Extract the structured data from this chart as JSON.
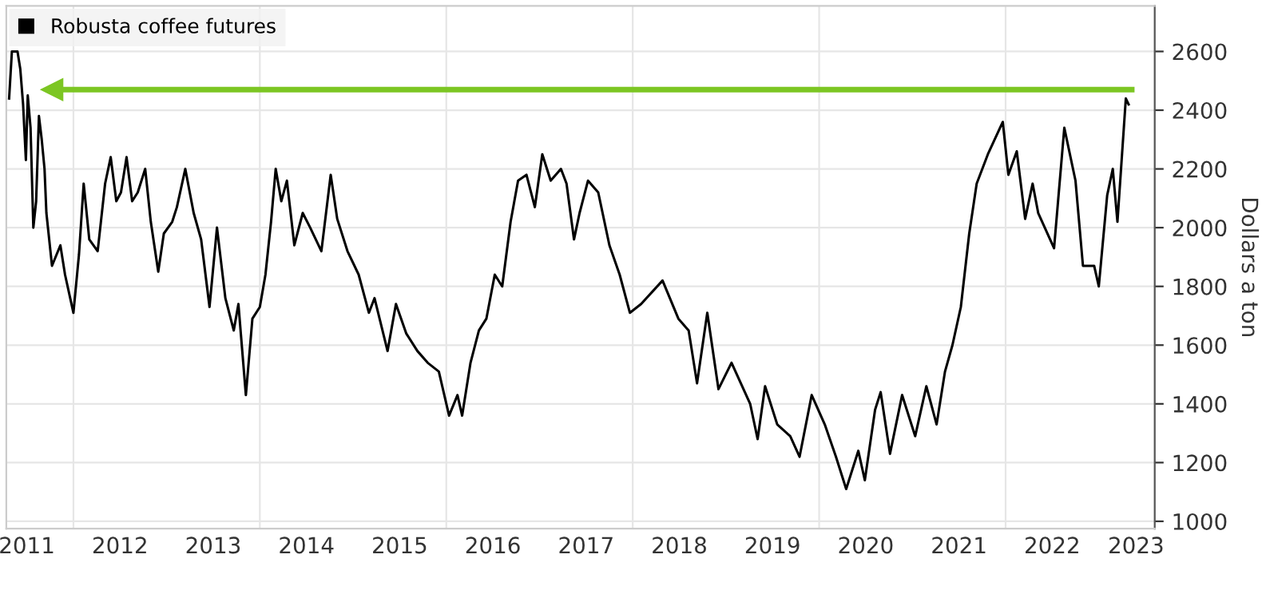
{
  "chart_data": {
    "type": "line",
    "ylabel": "Dollars a ton",
    "legend": "top left",
    "grid": true,
    "marker": "none",
    "line_style": "solid",
    "xlim": [
      2011.28,
      2023.6
    ],
    "ylim": [
      975,
      2755
    ],
    "yticks": [
      1000,
      1200,
      1400,
      1600,
      1800,
      2000,
      2200,
      2400,
      2600
    ],
    "xticks": [
      {
        "value": 2011.5,
        "label": "2011"
      },
      {
        "value": 2012.5,
        "label": "2012"
      },
      {
        "value": 2013.5,
        "label": "2013"
      },
      {
        "value": 2014.5,
        "label": "2014"
      },
      {
        "value": 2015.5,
        "label": "2015"
      },
      {
        "value": 2016.5,
        "label": "2016"
      },
      {
        "value": 2017.5,
        "label": "2017"
      },
      {
        "value": 2018.5,
        "label": "2018"
      },
      {
        "value": 2019.5,
        "label": "2019"
      },
      {
        "value": 2020.5,
        "label": "2020"
      },
      {
        "value": 2021.5,
        "label": "2021"
      },
      {
        "value": 2022.5,
        "label": "2022"
      },
      {
        "value": 2023.4,
        "label": "2023"
      },
      {
        "value": 2012,
        "label": null
      },
      {
        "value": 2014,
        "label": null
      },
      {
        "value": 2016,
        "label": null
      },
      {
        "value": 2018,
        "label": null
      },
      {
        "value": 2020,
        "label": null
      },
      {
        "value": 2022,
        "label": null
      }
    ],
    "ref_lines": [
      {
        "axis": "y",
        "value": 2470,
        "color": "#7cc623"
      }
    ],
    "series": [
      {
        "name": "Robusta coffee futures",
        "color": "#000000",
        "x": [
          2011.31,
          2011.34,
          2011.4,
          2011.43,
          2011.46,
          2011.49,
          2011.51,
          2011.54,
          2011.57,
          2011.6,
          2011.63,
          2011.66,
          2011.69,
          2011.71,
          2011.77,
          2011.86,
          2011.91,
          2012.0,
          2012.06,
          2012.11,
          2012.17,
          2012.26,
          2012.34,
          2012.4,
          2012.46,
          2012.51,
          2012.57,
          2012.63,
          2012.69,
          2012.77,
          2012.83,
          2012.91,
          2012.97,
          2013.06,
          2013.11,
          2013.2,
          2013.29,
          2013.37,
          2013.46,
          2013.54,
          2013.63,
          2013.72,
          2013.77,
          2013.85,
          2013.92,
          2014.0,
          2014.06,
          2014.12,
          2014.17,
          2014.23,
          2014.29,
          2014.37,
          2014.46,
          2014.54,
          2014.66,
          2014.76,
          2014.83,
          2014.94,
          2015.06,
          2015.17,
          2015.23,
          2015.37,
          2015.46,
          2015.57,
          2015.69,
          2015.8,
          2015.92,
          2016.03,
          2016.12,
          2016.17,
          2016.26,
          2016.35,
          2016.43,
          2016.52,
          2016.6,
          2016.69,
          2016.77,
          2016.86,
          2016.95,
          2017.03,
          2017.12,
          2017.23,
          2017.29,
          2017.37,
          2017.43,
          2017.52,
          2017.63,
          2017.75,
          2017.86,
          2017.97,
          2018.09,
          2018.32,
          2018.49,
          2018.6,
          2018.69,
          2018.8,
          2018.92,
          2019.06,
          2019.26,
          2019.34,
          2019.42,
          2019.55,
          2019.69,
          2019.79,
          2019.92,
          2020.06,
          2020.18,
          2020.29,
          2020.42,
          2020.49,
          2020.6,
          2020.66,
          2020.76,
          2020.89,
          2021.03,
          2021.15,
          2021.26,
          2021.35,
          2021.43,
          2021.52,
          2021.61,
          2021.69,
          2021.81,
          2021.97,
          2022.03,
          2022.12,
          2022.21,
          2022.29,
          2022.35,
          2022.52,
          2022.63,
          2022.75,
          2022.83,
          2022.95,
          2023.0,
          2023.09,
          2023.15,
          2023.2,
          2023.29,
          2023.32
        ],
        "values": [
          2440,
          2600,
          2600,
          2540,
          2420,
          2230,
          2450,
          2340,
          2000,
          2090,
          2380,
          2300,
          2200,
          2050,
          1870,
          1940,
          1840,
          1710,
          1910,
          2150,
          1960,
          1920,
          2150,
          2240,
          2090,
          2120,
          2240,
          2090,
          2120,
          2200,
          2020,
          1850,
          1980,
          2020,
          2070,
          2200,
          2050,
          1960,
          1730,
          2000,
          1760,
          1650,
          1740,
          1430,
          1690,
          1730,
          1840,
          2020,
          2200,
          2090,
          2160,
          1940,
          2050,
          2000,
          1920,
          2180,
          2030,
          1920,
          1840,
          1710,
          1760,
          1580,
          1740,
          1640,
          1580,
          1540,
          1510,
          1360,
          1430,
          1360,
          1540,
          1650,
          1690,
          1840,
          1800,
          2020,
          2160,
          2180,
          2070,
          2250,
          2160,
          2200,
          2150,
          1960,
          2050,
          2160,
          2120,
          1940,
          1840,
          1710,
          1740,
          1820,
          1690,
          1650,
          1470,
          1710,
          1450,
          1540,
          1400,
          1280,
          1460,
          1330,
          1290,
          1220,
          1430,
          1330,
          1220,
          1110,
          1240,
          1140,
          1380,
          1440,
          1230,
          1430,
          1290,
          1460,
          1330,
          1510,
          1600,
          1730,
          1980,
          2150,
          2250,
          2360,
          2180,
          2260,
          2030,
          2150,
          2050,
          1930,
          2340,
          2160,
          1870,
          1870,
          1800,
          2110,
          2200,
          2020,
          2440,
          2420
        ]
      }
    ]
  }
}
